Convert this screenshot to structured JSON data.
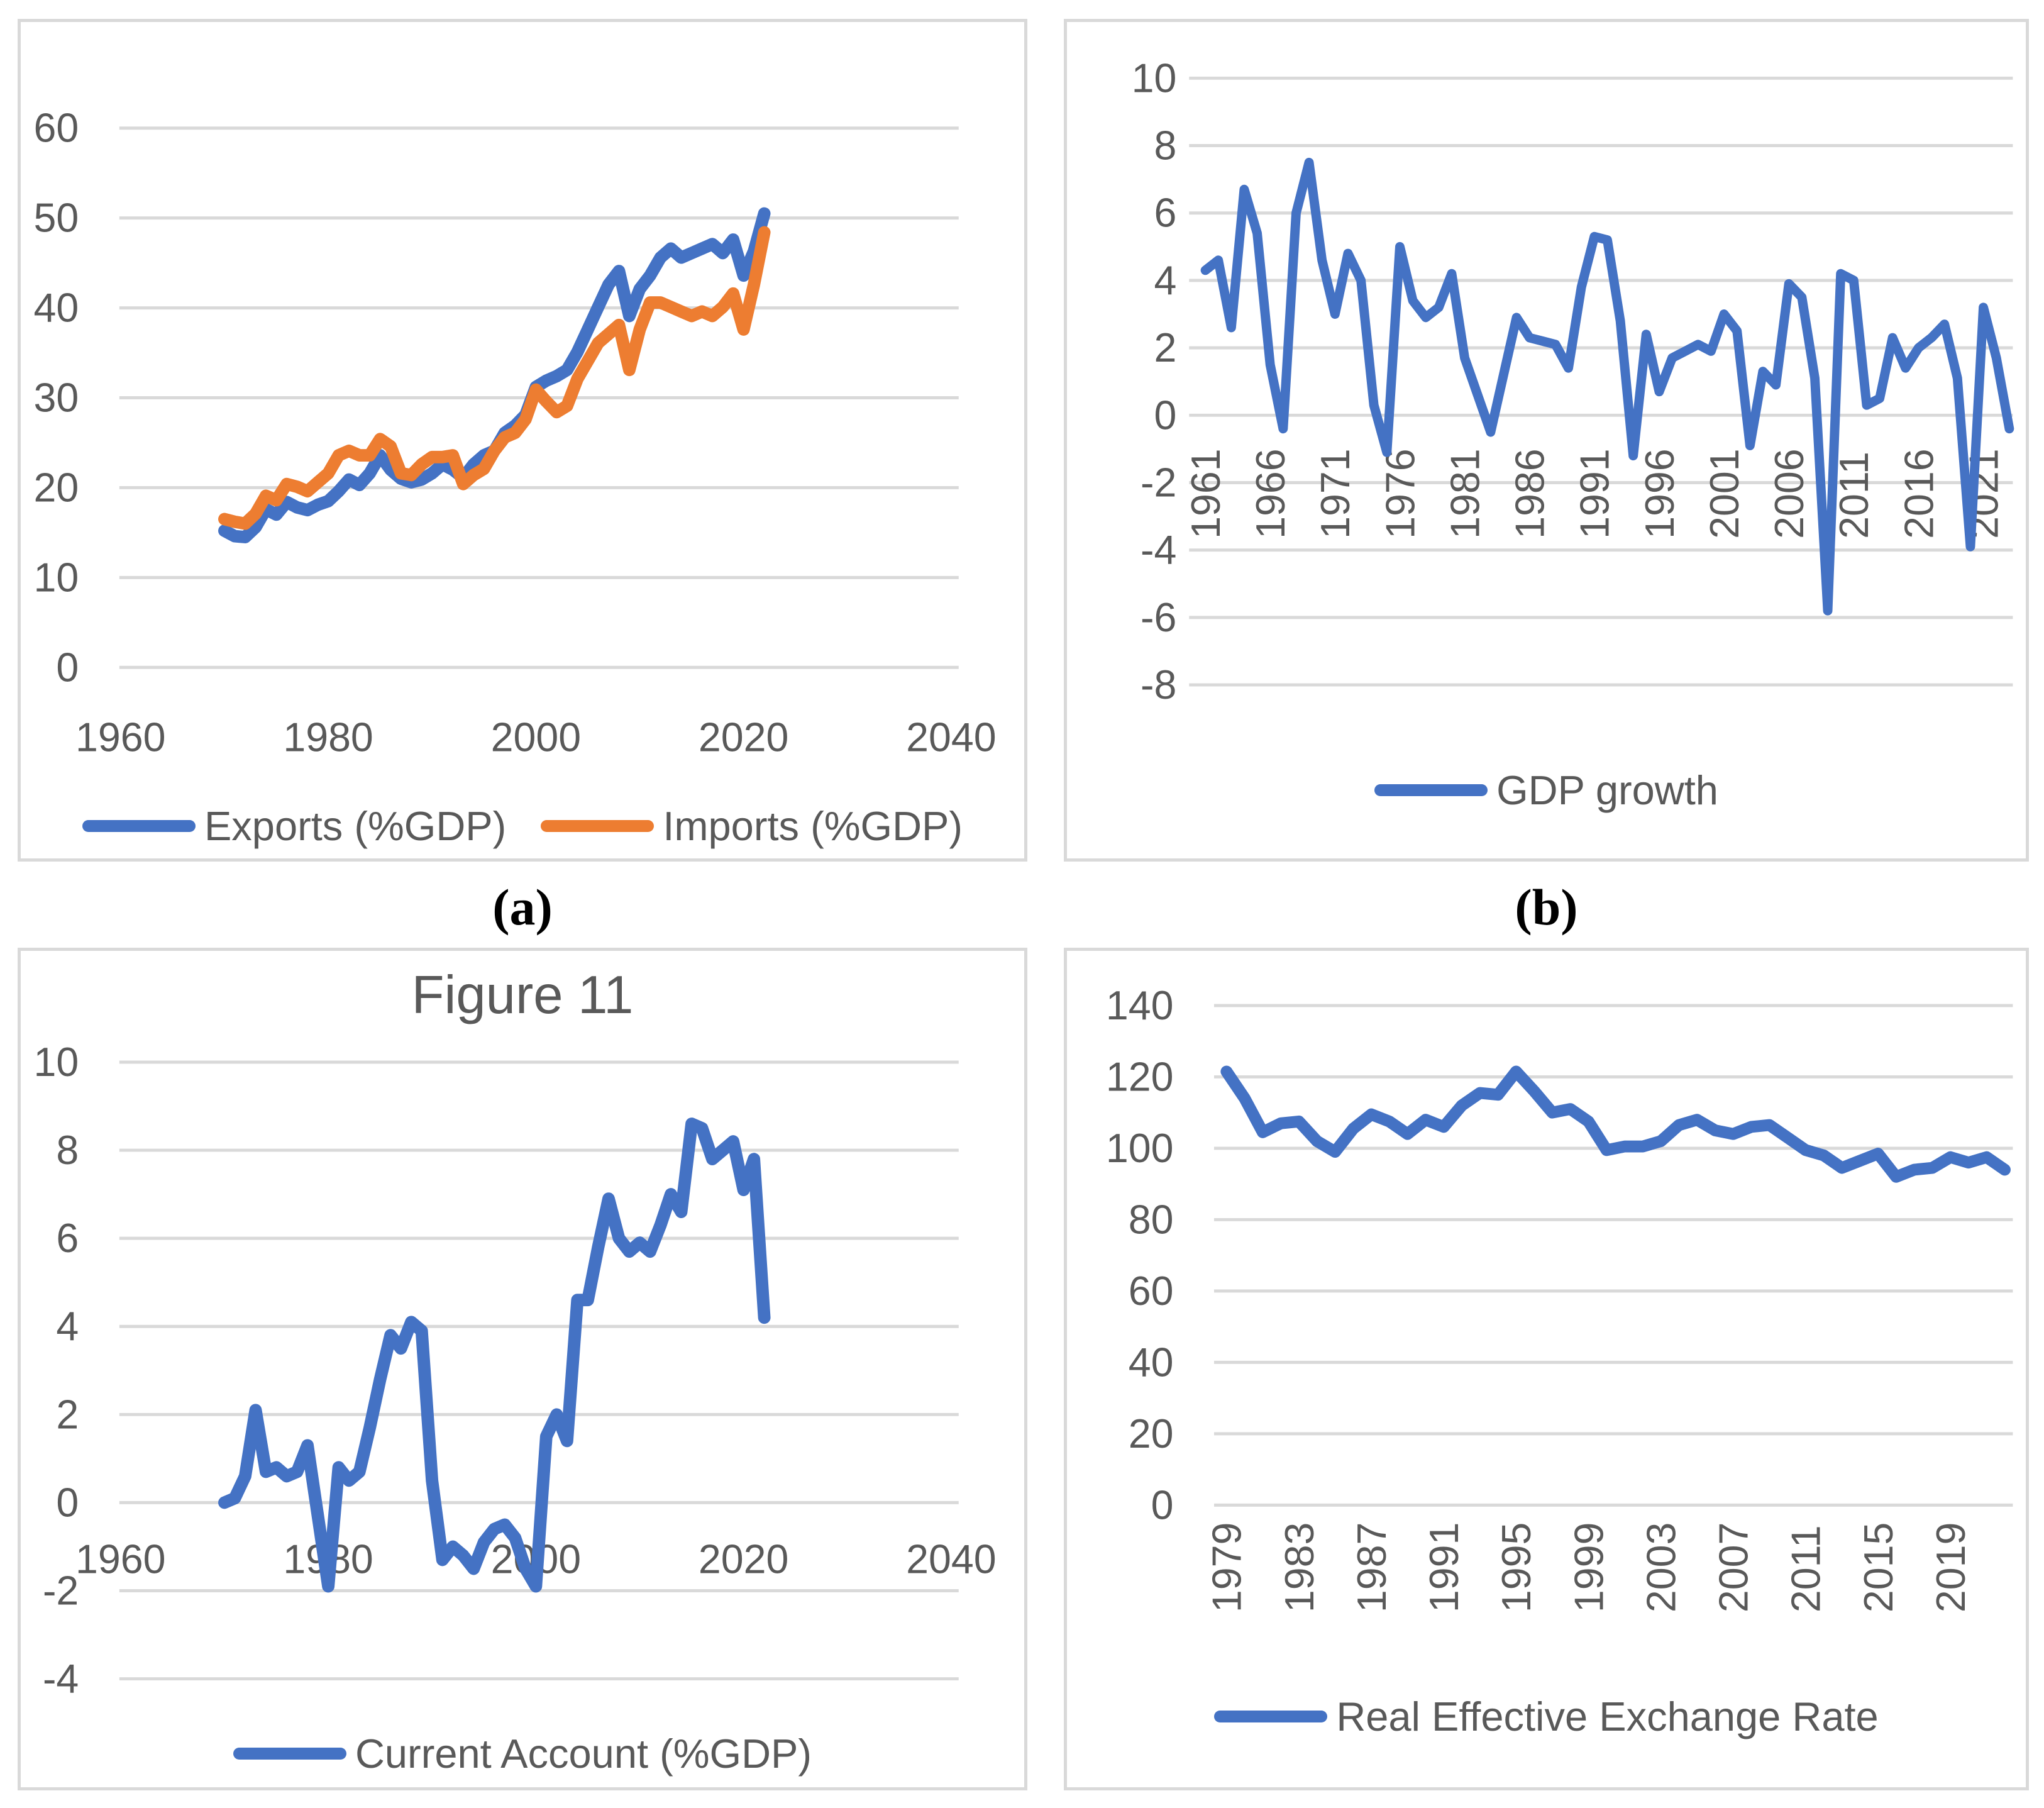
{
  "captions": {
    "a": "(a)",
    "b": "(b)"
  },
  "colors": {
    "blue": "#4472C4",
    "orange": "#ED7D31",
    "gridline": "#D9D9D9",
    "panel_border": "#D9D9D9",
    "axis_text": "#595959",
    "title_text": "#595959",
    "caption_text": "#000000"
  },
  "chart_data": [
    {
      "type": "line",
      "title": "",
      "xlabel": "",
      "ylabel": "",
      "grid": true,
      "legend_position": "bottom",
      "ylim": [
        0,
        60
      ],
      "ytick_step": 10,
      "x_tick_labels": [
        1960,
        1980,
        2000,
        2020,
        2040
      ],
      "x_range": [
        1970,
        2022
      ],
      "series": [
        {
          "name": "Exports (%GDP)",
          "color": "blue",
          "values": [
            15.2,
            14.6,
            14.5,
            15.6,
            17.6,
            17.0,
            18.4,
            17.8,
            17.5,
            18.1,
            18.5,
            19.6,
            20.9,
            20.3,
            21.6,
            23.6,
            22.0,
            21.0,
            20.6,
            20.9,
            21.6,
            22.6,
            22.0,
            21.1,
            22.6,
            23.6,
            24.1,
            26.1,
            26.9,
            28.1,
            31.2,
            31.9,
            32.4,
            33.1,
            35.1,
            37.6,
            40.1,
            42.6,
            44.1,
            39.1,
            42.1,
            43.6,
            45.6,
            46.6,
            45.6,
            46.1,
            46.6,
            47.1,
            46.1,
            47.6,
            43.6,
            46.3,
            50.5
          ]
        },
        {
          "name": "Imports (%GDP)",
          "color": "orange",
          "values": [
            16.5,
            16.2,
            16.0,
            17.1,
            19.1,
            18.6,
            20.4,
            20.1,
            19.6,
            20.6,
            21.6,
            23.6,
            24.1,
            23.6,
            23.6,
            25.4,
            24.6,
            21.6,
            21.4,
            22.6,
            23.4,
            23.4,
            23.6,
            20.4,
            21.4,
            22.1,
            24.1,
            25.6,
            26.1,
            27.6,
            30.9,
            29.6,
            28.4,
            29.1,
            32.1,
            34.1,
            36.1,
            37.1,
            38.1,
            33.1,
            37.6,
            40.6,
            40.6,
            40.1,
            39.6,
            39.1,
            39.6,
            39.1,
            40.1,
            41.6,
            37.6,
            42.6,
            48.4
          ]
        }
      ]
    },
    {
      "type": "line",
      "title": "",
      "xlabel": "",
      "ylabel": "",
      "grid": true,
      "legend_position": "bottom",
      "ylim": [
        -8,
        10
      ],
      "ytick_step": 2,
      "x_tick_labels": [
        1961,
        1966,
        1971,
        1976,
        1981,
        1986,
        1991,
        1996,
        2001,
        2006,
        2011,
        2016,
        2021
      ],
      "x_tick_rotation": -90,
      "x_range": [
        1961,
        2023
      ],
      "series": [
        {
          "name": "GDP growth",
          "color": "blue",
          "values": [
            4.3,
            4.6,
            2.6,
            6.7,
            5.4,
            1.5,
            -0.4,
            6.0,
            7.5,
            4.6,
            3.0,
            4.8,
            4.0,
            0.3,
            -1.1,
            5.0,
            3.4,
            2.9,
            3.2,
            4.2,
            1.7,
            0.6,
            -0.5,
            1.2,
            2.9,
            2.3,
            2.2,
            2.1,
            1.4,
            3.8,
            5.3,
            5.2,
            2.8,
            -1.2,
            2.4,
            0.7,
            1.7,
            1.9,
            2.1,
            1.9,
            3.0,
            2.5,
            -0.9,
            1.3,
            0.9,
            3.9,
            3.5,
            1.1,
            -5.8,
            4.2,
            4.0,
            0.3,
            0.5,
            2.3,
            1.4,
            2.0,
            2.3,
            2.7,
            1.1,
            -3.9,
            3.2,
            1.7,
            -0.4
          ]
        }
      ]
    },
    {
      "type": "line",
      "title": "Figure 11",
      "xlabel": "",
      "ylabel": "",
      "grid": true,
      "legend_position": "bottom",
      "ylim": [
        -4,
        10
      ],
      "ytick_step": 2,
      "x_tick_labels": [
        1960,
        1980,
        2000,
        2020,
        2040
      ],
      "x_range": [
        1970,
        2022
      ],
      "series": [
        {
          "name": "Current Account (%GDP)",
          "color": "blue",
          "values": [
            0.0,
            0.1,
            0.6,
            2.1,
            0.7,
            0.8,
            0.6,
            0.7,
            1.3,
            -0.3,
            -1.9,
            0.8,
            0.5,
            0.7,
            1.7,
            2.8,
            3.8,
            3.5,
            4.1,
            3.9,
            0.5,
            -1.3,
            -1.0,
            -1.2,
            -1.5,
            -0.9,
            -0.6,
            -0.5,
            -0.8,
            -1.5,
            -1.9,
            1.5,
            2.0,
            1.4,
            4.6,
            4.6,
            5.8,
            6.9,
            6.0,
            5.7,
            5.9,
            5.7,
            6.3,
            7.0,
            6.6,
            8.6,
            8.5,
            7.8,
            8.0,
            8.2,
            7.1,
            7.8,
            4.2
          ]
        }
      ]
    },
    {
      "type": "line",
      "title": "",
      "xlabel": "",
      "ylabel": "",
      "grid": true,
      "legend_position": "bottom",
      "ylim": [
        0,
        140
      ],
      "ytick_step": 20,
      "x_tick_labels": [
        1979,
        1983,
        1987,
        1991,
        1995,
        1999,
        2003,
        2007,
        2011,
        2015,
        2019
      ],
      "x_tick_rotation": -90,
      "x_range": [
        1979,
        2022
      ],
      "series": [
        {
          "name": "Real Effective Exchange Rate",
          "color": "blue",
          "values": [
            121.5,
            114,
            104.5,
            107,
            107.5,
            102,
            99,
            105.5,
            109.5,
            107.5,
            104,
            108,
            106,
            112,
            115.5,
            115,
            121.5,
            116,
            110,
            111,
            107.5,
            99.5,
            100.5,
            100.5,
            102,
            106.5,
            108,
            105,
            104,
            106,
            106.5,
            103,
            99.5,
            98,
            94.5,
            96.5,
            98.5,
            92,
            94,
            94.5,
            97.5,
            96,
            97.5,
            94
          ]
        }
      ]
    }
  ]
}
